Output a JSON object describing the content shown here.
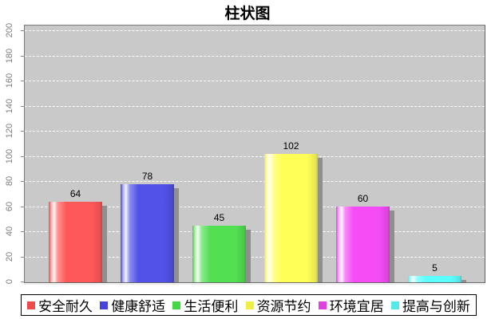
{
  "chart_data": {
    "type": "bar",
    "title": "柱状图",
    "categories": [
      "安全耐久",
      "健康舒适",
      "生活便利",
      "资源节约",
      "环境宜居",
      "提高与创新"
    ],
    "values": [
      64,
      78,
      45,
      102,
      60,
      5
    ],
    "value_labels": [
      "64",
      "78",
      "45",
      "102",
      "60",
      "5"
    ],
    "bar_colors": [
      "#ff5858",
      "#5252e8",
      "#52e052",
      "#ffff58",
      "#f54cf5",
      "#5cffff"
    ],
    "legend_colors": [
      "#ee4c4c",
      "#4444dd",
      "#44d844",
      "#eeee44",
      "#e040e0",
      "#55e8e8"
    ],
    "xlabel": "",
    "ylabel": "",
    "ylim": [
      0,
      200
    ],
    "y_ticks": [
      0,
      20,
      40,
      60,
      80,
      100,
      120,
      140,
      160,
      180,
      200
    ],
    "grid": "horizontal-dashed-white",
    "legend_position": "bottom",
    "plot_background": "#c9c9c9",
    "shadow_color": "#8f8f8f"
  }
}
